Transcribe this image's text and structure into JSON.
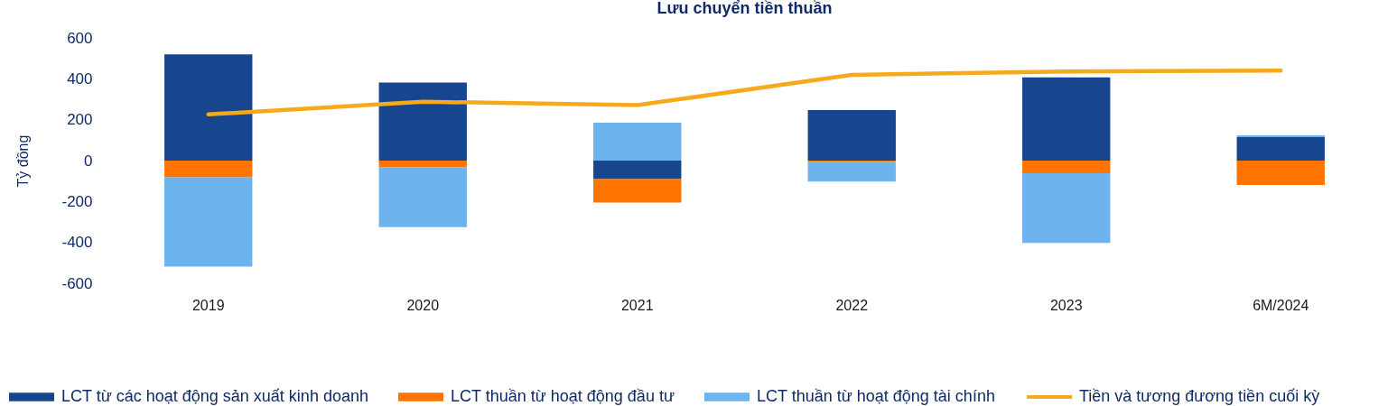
{
  "chart_data": {
    "type": "bar",
    "title": "Lưu chuyển tiền thuần",
    "ylabel": "Tỷ đồng",
    "categories": [
      "2019",
      "2020",
      "2021",
      "2022",
      "2023",
      "6M/2024"
    ],
    "stacked": true,
    "ylim": [
      -600,
      600
    ],
    "yticks": [
      -600,
      -400,
      -200,
      0,
      200,
      400,
      600
    ],
    "grid": false,
    "legend": "bottom",
    "marker": "none",
    "series": [
      {
        "name": "LCT từ các hoạt động sản xuất kinh doanh",
        "color": "#17468f",
        "values": [
          520,
          382,
          -90,
          247,
          407,
          115
        ]
      },
      {
        "name": "LCT thuần từ hoạt động đầu tư",
        "color": "#ff7400",
        "values": [
          -82,
          -33,
          -115,
          -6,
          -62,
          -119
        ]
      },
      {
        "name": "LCT thuần từ hoạt động tài chính",
        "color": "#6db3ee",
        "values": [
          -436,
          -292,
          185,
          -97,
          -341,
          8
        ]
      },
      {
        "name": "Tiền và tương đương tiền cuối kỳ",
        "type": "line",
        "color": "#f5aa1c",
        "values": [
          226,
          288,
          271,
          419,
          436,
          440
        ]
      }
    ]
  }
}
